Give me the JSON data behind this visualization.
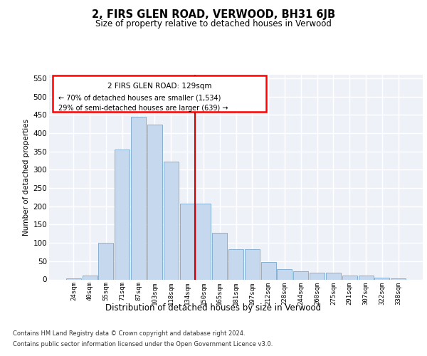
{
  "title": "2, FIRS GLEN ROAD, VERWOOD, BH31 6JB",
  "subtitle": "Size of property relative to detached houses in Verwood",
  "xlabel": "Distribution of detached houses by size in Verwood",
  "ylabel": "Number of detached properties",
  "categories": [
    "24sqm",
    "40sqm",
    "55sqm",
    "71sqm",
    "87sqm",
    "103sqm",
    "118sqm",
    "134sqm",
    "150sqm",
    "165sqm",
    "181sqm",
    "197sqm",
    "212sqm",
    "228sqm",
    "244sqm",
    "260sqm",
    "275sqm",
    "291sqm",
    "307sqm",
    "322sqm",
    "338sqm"
  ],
  "values": [
    2,
    10,
    100,
    355,
    445,
    423,
    323,
    208,
    208,
    128,
    83,
    83,
    48,
    28,
    22,
    18,
    18,
    10,
    10,
    5,
    2
  ],
  "bar_color": "#c5d8ed",
  "bar_edge_color": "#7aa8cc",
  "redline_x": 7.5,
  "redline_label": "2 FIRS GLEN ROAD: 129sqm",
  "annotation_line1": "← 70% of detached houses are smaller (1,534)",
  "annotation_line2": "29% of semi-detached houses are larger (639) →",
  "ylim": [
    0,
    560
  ],
  "yticks": [
    0,
    50,
    100,
    150,
    200,
    250,
    300,
    350,
    400,
    450,
    500,
    550
  ],
  "bg_color": "#eef2f8",
  "grid_color": "#ffffff",
  "footer1": "Contains HM Land Registry data © Crown copyright and database right 2024.",
  "footer2": "Contains public sector information licensed under the Open Government Licence v3.0."
}
